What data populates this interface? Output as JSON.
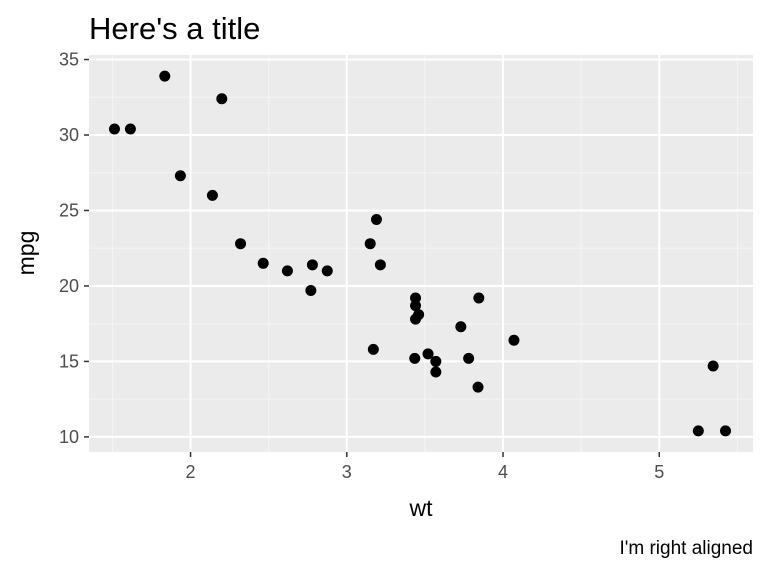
{
  "chart_data": {
    "type": "scatter",
    "title": "Here's a title",
    "caption": "I'm right aligned",
    "xlabel": "wt",
    "ylabel": "mpg",
    "xlim": [
      1.35,
      5.6
    ],
    "ylim": [
      9.0,
      35.3
    ],
    "x_ticks": [
      2,
      3,
      4,
      5
    ],
    "y_ticks": [
      10,
      15,
      20,
      25,
      30,
      35
    ],
    "grid": true,
    "legend": "none",
    "colors": {
      "panel_background": "#ebebeb",
      "grid_major": "#ffffff",
      "grid_minor": "#f5f5f5",
      "point": "#000000",
      "tick": "#333333"
    },
    "points": [
      {
        "x": 2.62,
        "y": 21.0
      },
      {
        "x": 2.875,
        "y": 21.0
      },
      {
        "x": 2.32,
        "y": 22.8
      },
      {
        "x": 3.215,
        "y": 21.4
      },
      {
        "x": 3.44,
        "y": 18.7
      },
      {
        "x": 3.46,
        "y": 18.1
      },
      {
        "x": 3.57,
        "y": 14.3
      },
      {
        "x": 3.19,
        "y": 24.4
      },
      {
        "x": 3.15,
        "y": 22.8
      },
      {
        "x": 3.44,
        "y": 19.2
      },
      {
        "x": 3.44,
        "y": 17.8
      },
      {
        "x": 4.07,
        "y": 16.4
      },
      {
        "x": 3.73,
        "y": 17.3
      },
      {
        "x": 3.78,
        "y": 15.2
      },
      {
        "x": 5.25,
        "y": 10.4
      },
      {
        "x": 5.424,
        "y": 10.4
      },
      {
        "x": 5.345,
        "y": 14.7
      },
      {
        "x": 2.2,
        "y": 32.4
      },
      {
        "x": 1.615,
        "y": 30.4
      },
      {
        "x": 1.835,
        "y": 33.9
      },
      {
        "x": 2.465,
        "y": 21.5
      },
      {
        "x": 3.52,
        "y": 15.5
      },
      {
        "x": 3.435,
        "y": 15.2
      },
      {
        "x": 3.84,
        "y": 13.3
      },
      {
        "x": 3.845,
        "y": 19.2
      },
      {
        "x": 1.935,
        "y": 27.3
      },
      {
        "x": 2.14,
        "y": 26.0
      },
      {
        "x": 1.513,
        "y": 30.4
      },
      {
        "x": 3.17,
        "y": 15.8
      },
      {
        "x": 2.77,
        "y": 19.7
      },
      {
        "x": 3.57,
        "y": 15.0
      },
      {
        "x": 2.78,
        "y": 21.4
      }
    ]
  }
}
